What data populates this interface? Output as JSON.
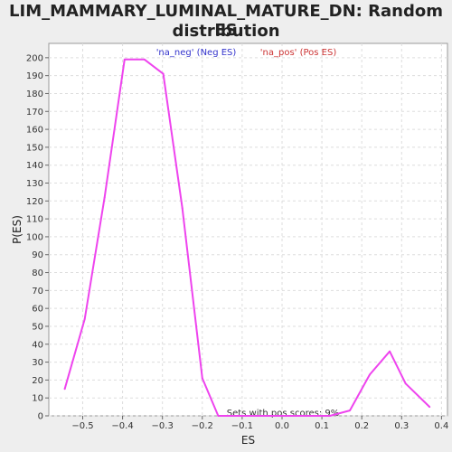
{
  "chart_data": {
    "type": "line",
    "title_line1": "LIM_MAMMARY_LUMINAL_MATURE_DN: Random ES",
    "title_line2": "distribution",
    "xlabel": "ES",
    "ylabel": "P(ES)",
    "xlim": [
      -0.585,
      0.415
    ],
    "ylim": [
      0,
      208
    ],
    "x_ticks": [
      -0.5,
      -0.4,
      -0.3,
      -0.2,
      -0.1,
      0.0,
      0.1,
      0.2,
      0.3,
      0.4
    ],
    "x_tick_labels": [
      "−0.5",
      "−0.4",
      "−0.3",
      "−0.2",
      "−0.1",
      "0.0",
      "0.1",
      "0.2",
      "0.3",
      "0.4"
    ],
    "y_ticks": [
      0,
      10,
      20,
      30,
      40,
      50,
      60,
      70,
      80,
      90,
      100,
      110,
      120,
      130,
      140,
      150,
      160,
      170,
      180,
      190,
      200
    ],
    "grid": true,
    "legend": [
      {
        "label": "'na_neg' (Neg ES)",
        "color": "#3333cc"
      },
      {
        "label": "'na_pos' (Pos ES)",
        "color": "#cc3333"
      }
    ],
    "annotation": "Sets with pos scores: 9%",
    "series": [
      {
        "color": "#ee44ee",
        "x": [
          -0.545,
          -0.495,
          -0.445,
          -0.395,
          -0.345,
          -0.298,
          -0.25,
          -0.2,
          -0.16,
          -0.12,
          -0.08,
          -0.03,
          0.03,
          0.08,
          0.12,
          0.17,
          0.22,
          0.27,
          0.31,
          0.37
        ],
        "y": [
          15,
          54,
          122,
          199,
          199,
          191,
          116,
          21,
          0,
          0,
          0,
          0,
          0,
          0,
          0,
          3,
          23,
          36,
          18,
          5
        ]
      }
    ]
  }
}
